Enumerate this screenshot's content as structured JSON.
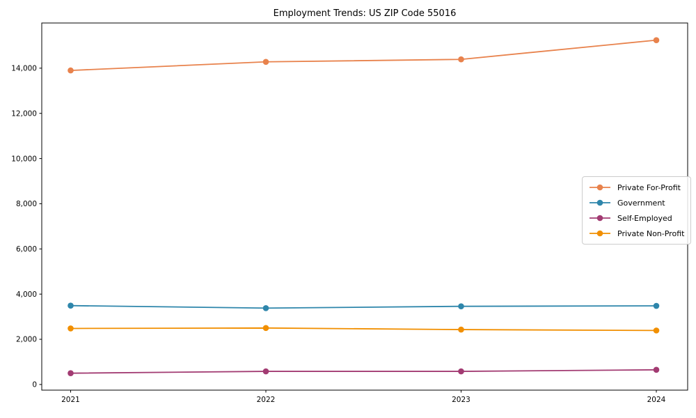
{
  "chart_data": {
    "type": "line",
    "title": "Employment Trends: US ZIP Code 55016",
    "x": [
      "2021",
      "2022",
      "2023",
      "2024"
    ],
    "series": [
      {
        "name": "Private For-Profit",
        "color": "#E8824C",
        "values": [
          13900,
          14280,
          14390,
          15240
        ]
      },
      {
        "name": "Government",
        "color": "#2E86AB",
        "values": [
          3490,
          3380,
          3460,
          3480
        ]
      },
      {
        "name": "Self-Employed",
        "color": "#A23B72",
        "values": [
          500,
          580,
          580,
          650
        ]
      },
      {
        "name": "Private Non-Profit",
        "color": "#F18F01",
        "values": [
          2480,
          2500,
          2430,
          2390
        ]
      }
    ],
    "xlabel": "",
    "ylabel": "",
    "ylim": [
      -250,
      16000
    ],
    "yticks": [
      0,
      2000,
      4000,
      6000,
      8000,
      10000,
      12000,
      14000
    ],
    "ytick_labels": [
      "0",
      "2,000",
      "4,000",
      "6,000",
      "8,000",
      "10,000",
      "12,000",
      "14,000"
    ],
    "grid": false,
    "marker": "circle",
    "legend_position": "center-right",
    "axis_color": "#000000",
    "text_color": "#000000"
  }
}
